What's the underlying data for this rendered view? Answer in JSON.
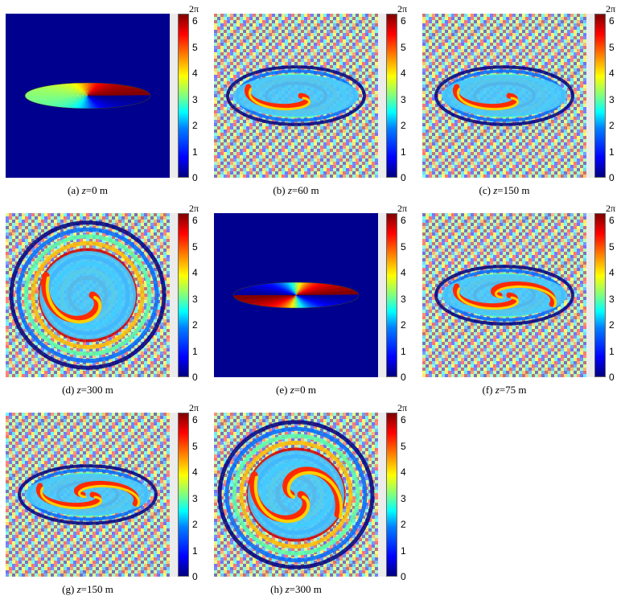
{
  "colorbar": {
    "top_label": "2π",
    "ticks": [
      "6",
      "5",
      "4",
      "3",
      "2",
      "1",
      "0"
    ],
    "range": [
      0,
      6.283
    ]
  },
  "panels": [
    {
      "key": "a",
      "prefix": "(a) ",
      "var": "z",
      "suffix": "=0 m",
      "pattern": "ellipse-clean",
      "charge": 1
    },
    {
      "key": "b",
      "prefix": "(b) ",
      "var": "z",
      "suffix": "=60 m",
      "pattern": "spiral",
      "charge": 1
    },
    {
      "key": "c",
      "prefix": "(c) ",
      "var": "z",
      "suffix": "=150 m",
      "pattern": "spiral",
      "charge": 1
    },
    {
      "key": "d",
      "prefix": "(d) ",
      "var": "z",
      "suffix": "=300 m",
      "pattern": "spiral-large",
      "charge": 1
    },
    {
      "key": "e",
      "prefix": "(e) ",
      "var": "z",
      "suffix": "=0 m",
      "pattern": "ellipse-clean",
      "charge": 2
    },
    {
      "key": "f",
      "prefix": "(f) ",
      "var": "z",
      "suffix": "=75 m",
      "pattern": "spiral",
      "charge": 2
    },
    {
      "key": "g",
      "prefix": "(g) ",
      "var": "z",
      "suffix": "=150 m",
      "pattern": "spiral",
      "charge": 2
    },
    {
      "key": "h",
      "prefix": "(h) ",
      "var": "z",
      "suffix": "=300 m",
      "pattern": "spiral-large",
      "charge": 2
    }
  ]
}
